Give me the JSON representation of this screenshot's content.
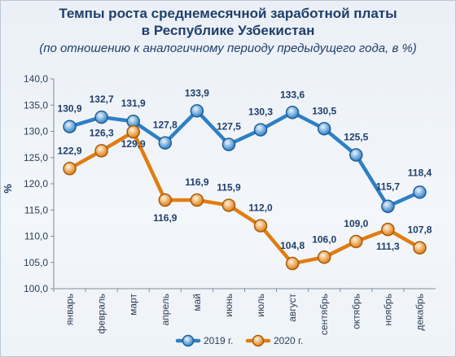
{
  "chart_data": {
    "type": "line",
    "title": [
      "Темпы роста среднемесячной заработной платы",
      "в Республике Узбекистан"
    ],
    "subtitle": "(по отношению к аналогичному периоду предыдущего года, в %)",
    "ylabel": "%",
    "xlabel": "",
    "ylim": [
      100,
      140
    ],
    "ytick_labels": [
      "100,0",
      "105,0",
      "110,0",
      "115,0",
      "120,0",
      "125,0",
      "130,0",
      "135,0",
      "140,0"
    ],
    "categories": [
      "январь",
      "февраль",
      "март",
      "апрель",
      "май",
      "июнь",
      "июль",
      "август",
      "сентябрь",
      "октябрь",
      "ноябрь",
      "декабрь"
    ],
    "legend_position": "bottom",
    "grid": false,
    "series": [
      {
        "name": "2019 г.",
        "color": "#2e7fc4",
        "values": [
          130.9,
          132.7,
          131.9,
          127.8,
          133.9,
          127.5,
          130.3,
          133.6,
          130.5,
          125.5,
          115.7,
          118.4
        ],
        "labels": [
          "130,9",
          "132,7",
          "131,9",
          "127,8",
          "133,9",
          "127,5",
          "130,3",
          "133,6",
          "130,5",
          "125,5",
          "115,7",
          "118,4"
        ]
      },
      {
        "name": "2020 г.",
        "color": "#e07d10",
        "values": [
          122.9,
          126.3,
          129.9,
          116.9,
          116.9,
          115.9,
          112.0,
          104.8,
          106.0,
          109.0,
          111.3,
          107.8
        ],
        "labels": [
          "122,9",
          "126,3",
          "129,9",
          "116,9",
          "116,9",
          "115,9",
          "112,0",
          "104,8",
          "106,0",
          "109,0",
          "111,3",
          "107,8"
        ]
      }
    ]
  }
}
